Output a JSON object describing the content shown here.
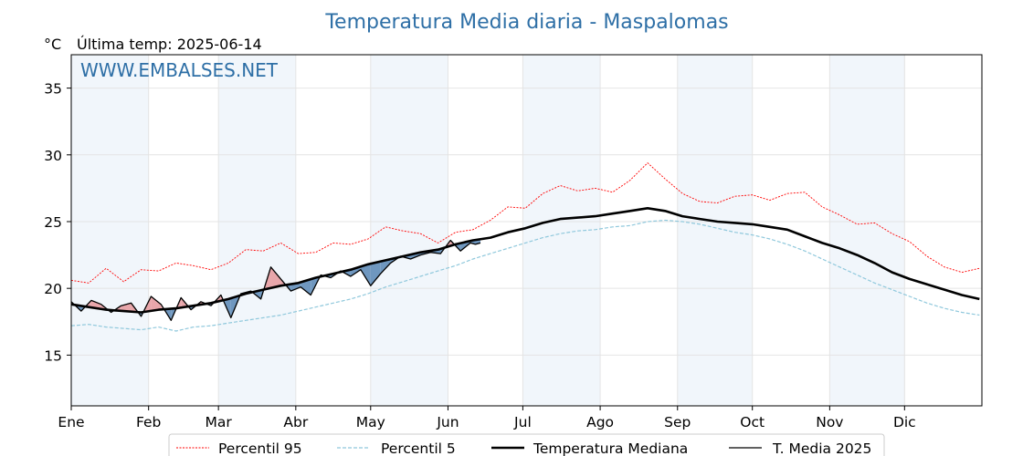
{
  "chart_data": {
    "type": "line",
    "title": "Temperatura Media diaria - Maspalomas",
    "unit": "°C",
    "subtitle": "Última temp: 2025-06-14",
    "watermark": "WWW.EMBALSES.NET",
    "months": [
      "Ene",
      "Feb",
      "Mar",
      "Abr",
      "May",
      "Jun",
      "Jul",
      "Ago",
      "Sep",
      "Oct",
      "Nov",
      "Dic"
    ],
    "month_start_days": [
      1,
      32,
      60,
      91,
      121,
      152,
      182,
      213,
      244,
      274,
      305,
      335
    ],
    "x_range_days": [
      1,
      366
    ],
    "yticks": [
      15,
      20,
      25,
      30,
      35
    ],
    "ylim": [
      11.2,
      37.5
    ],
    "grid": true,
    "legend_position": "bottom",
    "colors": {
      "p95": "#ff0000",
      "p5": "#8fc8dc",
      "median": "#000000",
      "media2025": "#000000",
      "above_fill": "#e8a6aa",
      "below_fill": "#6f97bf",
      "band": "#e6eef8",
      "title": "#2e6fa6"
    },
    "series": [
      {
        "name": "Percentil 95",
        "x": [
          1,
          8,
          15,
          22,
          29,
          36,
          43,
          50,
          57,
          64,
          71,
          78,
          85,
          92,
          99,
          106,
          113,
          120,
          127,
          134,
          141,
          148,
          155,
          162,
          169,
          176,
          183,
          190,
          197,
          204,
          211,
          218,
          225,
          232,
          239,
          246,
          253,
          260,
          267,
          274,
          281,
          288,
          295,
          302,
          309,
          316,
          323,
          330,
          337,
          344,
          351,
          358,
          365
        ],
        "values": [
          20.6,
          20.4,
          21.5,
          20.5,
          21.4,
          21.3,
          21.9,
          21.7,
          21.4,
          21.9,
          22.9,
          22.8,
          23.4,
          22.6,
          22.7,
          23.4,
          23.3,
          23.7,
          24.6,
          24.3,
          24.1,
          23.4,
          24.2,
          24.4,
          25.1,
          26.1,
          26.0,
          27.1,
          27.7,
          27.3,
          27.5,
          27.2,
          28.1,
          29.4,
          28.2,
          27.1,
          26.5,
          26.4,
          26.9,
          27.0,
          26.6,
          27.1,
          27.2,
          26.1,
          25.5,
          24.8,
          24.9,
          24.1,
          23.5,
          22.4,
          21.6,
          21.2,
          21.5
        ]
      },
      {
        "name": "Percentil 5",
        "x": [
          1,
          8,
          15,
          22,
          29,
          36,
          43,
          50,
          57,
          64,
          71,
          78,
          85,
          92,
          99,
          106,
          113,
          120,
          127,
          134,
          141,
          148,
          155,
          162,
          169,
          176,
          183,
          190,
          197,
          204,
          211,
          218,
          225,
          232,
          239,
          246,
          253,
          260,
          267,
          274,
          281,
          288,
          295,
          302,
          309,
          316,
          323,
          330,
          337,
          344,
          351,
          358,
          365
        ],
        "values": [
          17.2,
          17.3,
          17.1,
          17.0,
          16.9,
          17.1,
          16.8,
          17.1,
          17.2,
          17.4,
          17.6,
          17.8,
          18.0,
          18.3,
          18.6,
          18.9,
          19.2,
          19.6,
          20.1,
          20.5,
          20.9,
          21.3,
          21.7,
          22.2,
          22.6,
          23.0,
          23.4,
          23.8,
          24.1,
          24.3,
          24.4,
          24.6,
          24.7,
          25.0,
          25.1,
          25.0,
          24.8,
          24.5,
          24.2,
          24.0,
          23.7,
          23.3,
          22.8,
          22.2,
          21.6,
          21.0,
          20.4,
          19.9,
          19.4,
          18.9,
          18.5,
          18.2,
          18.0
        ]
      },
      {
        "name": "Temperatura Mediana",
        "x": [
          1,
          8,
          15,
          22,
          29,
          36,
          43,
          50,
          57,
          64,
          71,
          78,
          85,
          92,
          99,
          106,
          113,
          120,
          127,
          134,
          141,
          148,
          155,
          162,
          169,
          176,
          183,
          190,
          197,
          204,
          211,
          218,
          225,
          232,
          239,
          246,
          253,
          260,
          267,
          274,
          281,
          288,
          295,
          302,
          309,
          316,
          323,
          330,
          337,
          344,
          351,
          358,
          365
        ],
        "values": [
          18.8,
          18.6,
          18.4,
          18.3,
          18.2,
          18.4,
          18.5,
          18.7,
          18.9,
          19.2,
          19.6,
          19.9,
          20.2,
          20.4,
          20.8,
          21.1,
          21.4,
          21.8,
          22.1,
          22.4,
          22.7,
          22.9,
          23.3,
          23.6,
          23.8,
          24.2,
          24.5,
          24.9,
          25.2,
          25.3,
          25.4,
          25.6,
          25.8,
          26.0,
          25.8,
          25.4,
          25.2,
          25.0,
          24.9,
          24.8,
          24.6,
          24.4,
          23.9,
          23.4,
          23.0,
          22.5,
          21.9,
          21.2,
          20.7,
          20.3,
          19.9,
          19.5,
          19.2
        ]
      },
      {
        "name": "T. Media 2025",
        "x": [
          1,
          5,
          9,
          13,
          17,
          21,
          25,
          29,
          33,
          37,
          41,
          45,
          49,
          53,
          57,
          61,
          65,
          69,
          73,
          77,
          81,
          85,
          89,
          93,
          97,
          101,
          105,
          109,
          113,
          117,
          121,
          125,
          129,
          133,
          137,
          141,
          145,
          149,
          153,
          157,
          161,
          163,
          165
        ],
        "values": [
          19.0,
          18.3,
          19.1,
          18.8,
          18.2,
          18.7,
          18.9,
          17.9,
          19.4,
          18.8,
          17.6,
          19.3,
          18.4,
          19.0,
          18.7,
          19.5,
          17.8,
          19.6,
          19.8,
          19.2,
          21.6,
          20.7,
          19.8,
          20.1,
          19.5,
          21.0,
          20.8,
          21.3,
          20.9,
          21.4,
          20.2,
          21.1,
          21.9,
          22.4,
          22.2,
          22.5,
          22.7,
          22.6,
          23.6,
          22.8,
          23.4,
          23.3,
          23.4
        ]
      }
    ]
  }
}
